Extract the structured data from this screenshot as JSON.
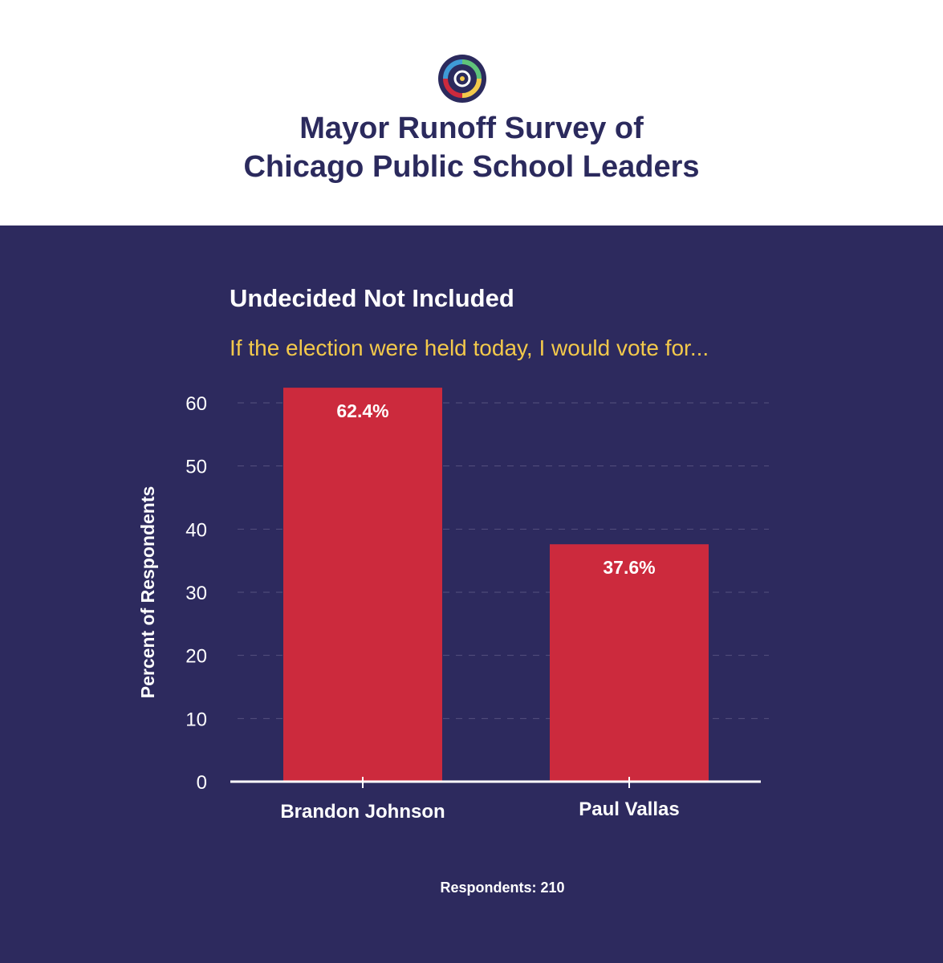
{
  "header": {
    "title_line1": "Mayor Runoff Survey of",
    "title_line2": "Chicago Public School Leaders",
    "logo_icon": "target-circle-logo-icon"
  },
  "chart_data": {
    "type": "bar",
    "title": "Undecided Not Included",
    "subtitle": "If the election were held today, I would vote for...",
    "categories": [
      "Brandon Johnson",
      "Paul Vallas"
    ],
    "values": [
      62.4,
      37.6
    ],
    "value_labels": [
      "62.4%",
      "37.6%"
    ],
    "xlabel": "",
    "ylabel": "Percent of Respondents",
    "ylim": [
      0,
      60
    ],
    "yticks": [
      "0",
      "10",
      "20",
      "30",
      "40",
      "50",
      "60"
    ],
    "grid": true,
    "grid_style": "dashed",
    "bar_color": "#cc2a3d",
    "note": "Respondents: 210"
  },
  "colors": {
    "panel_bg": "#2d2a5e",
    "title_text": "#2b2a5d",
    "question_text": "#f3c94b",
    "gridline": "#55527f"
  }
}
